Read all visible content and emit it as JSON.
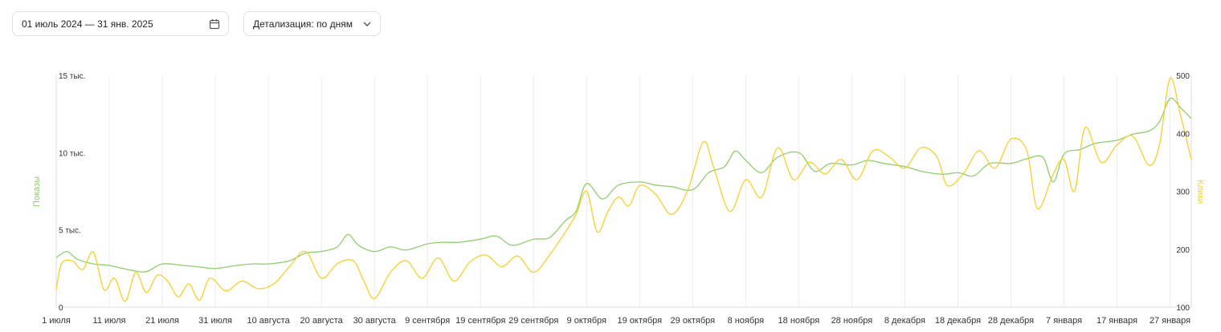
{
  "toolbar": {
    "date_range": "01 июль 2024 — 31 янв. 2025",
    "date_icon": "calendar-icon",
    "detail_label": "Детализация: по дням",
    "detail_icon": "chevron-down-icon"
  },
  "chart_data": {
    "type": "line",
    "x_labels": [
      "1 июля",
      "11 июля",
      "21 июля",
      "31 июля",
      "10 августа",
      "20 августа",
      "30 августа",
      "9 сентября",
      "19 сентября",
      "29 сентября",
      "9 октября",
      "19 октября",
      "29 октября",
      "8 ноября",
      "18 ноября",
      "28 ноября",
      "8 декабря",
      "18 декабря",
      "28 декабря",
      "7 января",
      "17 января",
      "27 января"
    ],
    "x_range": [
      "2024-07-01",
      "2025-01-31"
    ],
    "y_left": {
      "label": "Показы",
      "ticks": [
        "0",
        "5 тыс.",
        "10 тыс.",
        "15 тыс."
      ],
      "range": [
        0,
        15000
      ]
    },
    "y_right": {
      "label": "Клики",
      "ticks": [
        "100",
        "200",
        "300",
        "400",
        "500"
      ],
      "range": [
        100,
        500
      ]
    },
    "grid": true,
    "colors": {
      "impressions": "#8fce6e",
      "clicks": "#f7d02b"
    },
    "series": [
      {
        "name": "Показы",
        "axis": "left",
        "color": "#8fce6e",
        "points": [
          [
            "2024-07-01",
            3200
          ],
          [
            "2024-07-03",
            3600
          ],
          [
            "2024-07-05",
            3100
          ],
          [
            "2024-07-08",
            2800
          ],
          [
            "2024-07-11",
            2700
          ],
          [
            "2024-07-15",
            2400
          ],
          [
            "2024-07-18",
            2300
          ],
          [
            "2024-07-21",
            2800
          ],
          [
            "2024-07-25",
            2700
          ],
          [
            "2024-07-28",
            2600
          ],
          [
            "2024-07-31",
            2500
          ],
          [
            "2024-08-04",
            2700
          ],
          [
            "2024-08-07",
            2800
          ],
          [
            "2024-08-10",
            2800
          ],
          [
            "2024-08-14",
            3000
          ],
          [
            "2024-08-17",
            3500
          ],
          [
            "2024-08-20",
            3600
          ],
          [
            "2024-08-23",
            3900
          ],
          [
            "2024-08-25",
            4700
          ],
          [
            "2024-08-27",
            4000
          ],
          [
            "2024-08-30",
            3600
          ],
          [
            "2024-09-02",
            3900
          ],
          [
            "2024-09-05",
            3700
          ],
          [
            "2024-09-09",
            4100
          ],
          [
            "2024-09-12",
            4200
          ],
          [
            "2024-09-15",
            4200
          ],
          [
            "2024-09-19",
            4400
          ],
          [
            "2024-09-22",
            4600
          ],
          [
            "2024-09-25",
            4000
          ],
          [
            "2024-09-29",
            4400
          ],
          [
            "2024-10-02",
            4500
          ],
          [
            "2024-10-05",
            5600
          ],
          [
            "2024-10-07",
            6200
          ],
          [
            "2024-10-09",
            8000
          ],
          [
            "2024-10-12",
            7000
          ],
          [
            "2024-10-15",
            7900
          ],
          [
            "2024-10-19",
            8100
          ],
          [
            "2024-10-22",
            7900
          ],
          [
            "2024-10-25",
            7800
          ],
          [
            "2024-10-29",
            7600
          ],
          [
            "2024-11-01",
            8700
          ],
          [
            "2024-11-04",
            9100
          ],
          [
            "2024-11-06",
            10100
          ],
          [
            "2024-11-08",
            9500
          ],
          [
            "2024-11-11",
            8700
          ],
          [
            "2024-11-14",
            9700
          ],
          [
            "2024-11-18",
            10000
          ],
          [
            "2024-11-21",
            8800
          ],
          [
            "2024-11-24",
            9300
          ],
          [
            "2024-11-28",
            9200
          ],
          [
            "2024-12-01",
            9500
          ],
          [
            "2024-12-04",
            9300
          ],
          [
            "2024-12-08",
            9100
          ],
          [
            "2024-12-11",
            8800
          ],
          [
            "2024-12-15",
            8600
          ],
          [
            "2024-12-18",
            8700
          ],
          [
            "2024-12-21",
            8500
          ],
          [
            "2024-12-24",
            9300
          ],
          [
            "2024-12-28",
            9300
          ],
          [
            "2024-12-31",
            9600
          ],
          [
            "2025-01-03",
            9700
          ],
          [
            "2025-01-05",
            8100
          ],
          [
            "2025-01-07",
            9900
          ],
          [
            "2025-01-10",
            10200
          ],
          [
            "2025-01-13",
            10600
          ],
          [
            "2025-01-17",
            10800
          ],
          [
            "2025-01-20",
            11200
          ],
          [
            "2025-01-23",
            11400
          ],
          [
            "2025-01-25",
            12000
          ],
          [
            "2025-01-27",
            13500
          ],
          [
            "2025-01-29",
            12900
          ],
          [
            "2025-01-31",
            12200
          ]
        ]
      },
      {
        "name": "Клики",
        "axis": "right",
        "color": "#f7d02b",
        "points": [
          [
            "2024-07-01",
            130
          ],
          [
            "2024-07-02",
            175
          ],
          [
            "2024-07-04",
            180
          ],
          [
            "2024-07-06",
            165
          ],
          [
            "2024-07-08",
            195
          ],
          [
            "2024-07-10",
            130
          ],
          [
            "2024-07-12",
            150
          ],
          [
            "2024-07-14",
            110
          ],
          [
            "2024-07-16",
            160
          ],
          [
            "2024-07-18",
            125
          ],
          [
            "2024-07-20",
            155
          ],
          [
            "2024-07-22",
            145
          ],
          [
            "2024-07-24",
            118
          ],
          [
            "2024-07-26",
            140
          ],
          [
            "2024-07-28",
            112
          ],
          [
            "2024-07-30",
            150
          ],
          [
            "2024-08-02",
            128
          ],
          [
            "2024-08-05",
            145
          ],
          [
            "2024-08-08",
            132
          ],
          [
            "2024-08-11",
            140
          ],
          [
            "2024-08-14",
            170
          ],
          [
            "2024-08-17",
            196
          ],
          [
            "2024-08-20",
            150
          ],
          [
            "2024-08-23",
            175
          ],
          [
            "2024-08-26",
            180
          ],
          [
            "2024-08-28",
            145
          ],
          [
            "2024-08-30",
            115
          ],
          [
            "2024-09-02",
            160
          ],
          [
            "2024-09-05",
            180
          ],
          [
            "2024-09-08",
            150
          ],
          [
            "2024-09-11",
            185
          ],
          [
            "2024-09-14",
            145
          ],
          [
            "2024-09-17",
            178
          ],
          [
            "2024-09-20",
            190
          ],
          [
            "2024-09-23",
            170
          ],
          [
            "2024-09-26",
            188
          ],
          [
            "2024-09-29",
            160
          ],
          [
            "2024-10-02",
            190
          ],
          [
            "2024-10-05",
            230
          ],
          [
            "2024-10-07",
            260
          ],
          [
            "2024-10-09",
            300
          ],
          [
            "2024-10-11",
            230
          ],
          [
            "2024-10-13",
            265
          ],
          [
            "2024-10-15",
            290
          ],
          [
            "2024-10-17",
            275
          ],
          [
            "2024-10-19",
            310
          ],
          [
            "2024-10-22",
            295
          ],
          [
            "2024-10-25",
            260
          ],
          [
            "2024-10-28",
            300
          ],
          [
            "2024-10-31",
            385
          ],
          [
            "2024-11-02",
            340
          ],
          [
            "2024-11-05",
            265
          ],
          [
            "2024-11-08",
            320
          ],
          [
            "2024-11-11",
            290
          ],
          [
            "2024-11-14",
            375
          ],
          [
            "2024-11-17",
            320
          ],
          [
            "2024-11-20",
            350
          ],
          [
            "2024-11-23",
            330
          ],
          [
            "2024-11-26",
            355
          ],
          [
            "2024-11-29",
            320
          ],
          [
            "2024-12-02",
            370
          ],
          [
            "2024-12-05",
            360
          ],
          [
            "2024-12-08",
            340
          ],
          [
            "2024-12-11",
            375
          ],
          [
            "2024-12-14",
            360
          ],
          [
            "2024-12-16",
            310
          ],
          [
            "2024-12-19",
            330
          ],
          [
            "2024-12-22",
            370
          ],
          [
            "2024-12-25",
            340
          ],
          [
            "2024-12-28",
            390
          ],
          [
            "2024-12-31",
            370
          ],
          [
            "2025-01-02",
            270
          ],
          [
            "2025-01-05",
            330
          ],
          [
            "2025-01-07",
            355
          ],
          [
            "2025-01-09",
            300
          ],
          [
            "2025-01-11",
            410
          ],
          [
            "2025-01-14",
            350
          ],
          [
            "2025-01-17",
            380
          ],
          [
            "2025-01-20",
            395
          ],
          [
            "2025-01-23",
            345
          ],
          [
            "2025-01-25",
            380
          ],
          [
            "2025-01-27",
            495
          ],
          [
            "2025-01-29",
            430
          ],
          [
            "2025-01-31",
            355
          ]
        ]
      }
    ]
  }
}
